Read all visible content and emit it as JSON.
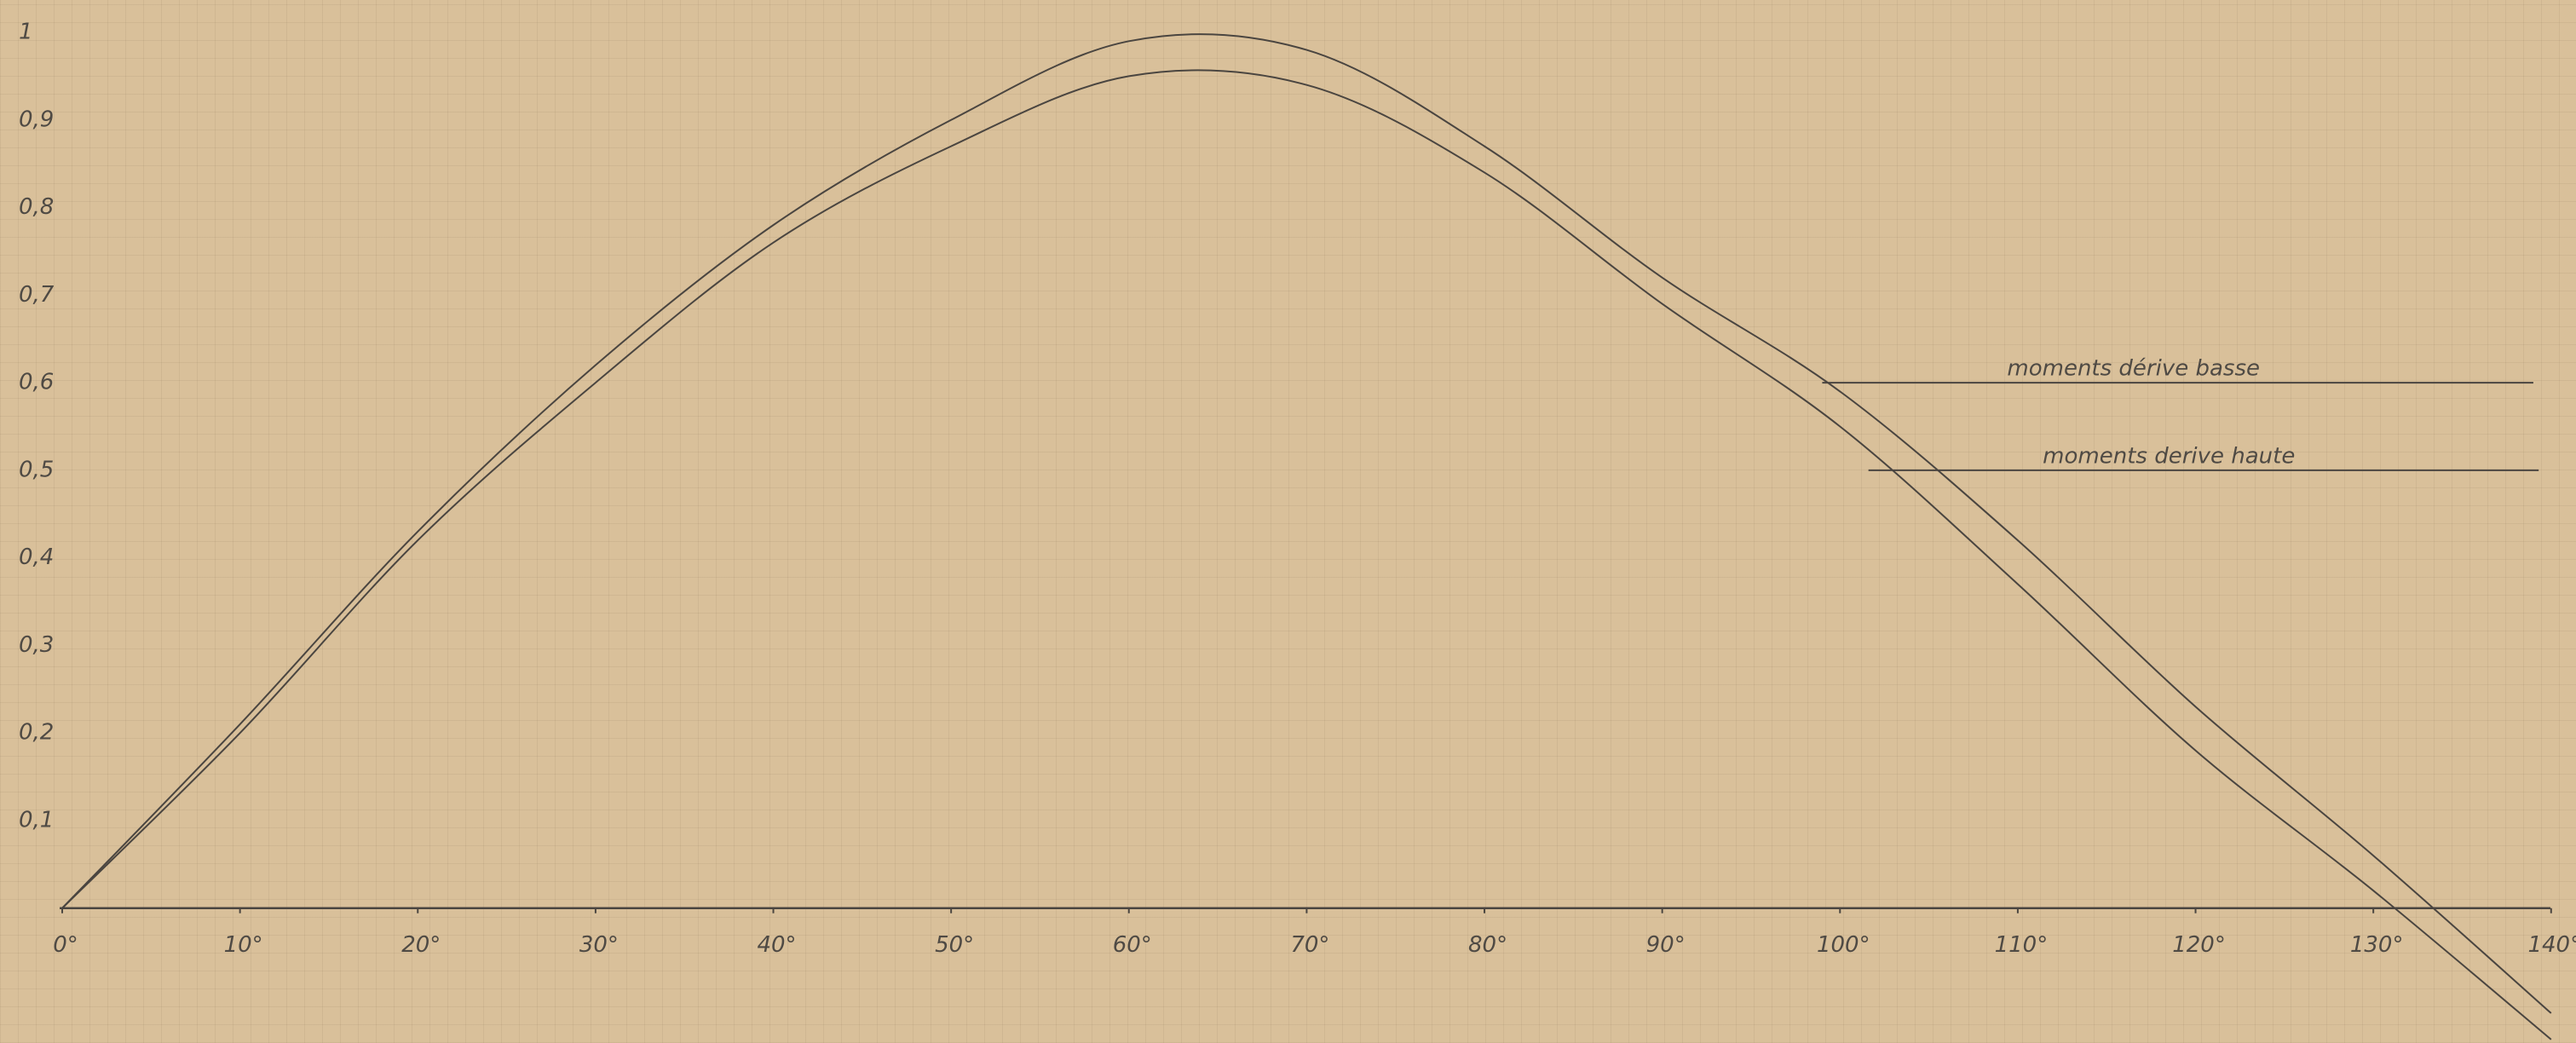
{
  "chart_data": {
    "type": "line",
    "x": [
      0,
      10,
      20,
      30,
      40,
      50,
      60,
      70,
      80,
      90,
      100,
      110,
      120,
      130,
      140
    ],
    "series": [
      {
        "name": "moments dérive basse",
        "color": "#4a4540",
        "values": [
          0,
          0.21,
          0.43,
          0.62,
          0.78,
          0.9,
          0.99,
          0.98,
          0.87,
          0.72,
          0.59,
          0.42,
          0.23,
          0.06,
          -0.12
        ]
      },
      {
        "name": "moments derive haute",
        "color": "#4a4540",
        "values": [
          0,
          0.2,
          0.42,
          0.6,
          0.76,
          0.87,
          0.95,
          0.94,
          0.84,
          0.69,
          0.55,
          0.37,
          0.18,
          0.02,
          -0.15
        ]
      }
    ],
    "annotations": [
      {
        "text": "moments dérive basse",
        "y": 0.6,
        "x": [
          99,
          139
        ]
      },
      {
        "text": "moments derive haute",
        "y": 0.5,
        "x": [
          101.6,
          139.3
        ]
      }
    ],
    "xlim": [
      -3.5,
      141.4
    ],
    "ylim": [
      -0.154,
      1.037
    ],
    "xticks": [
      {
        "value": 0,
        "label": "0°"
      },
      {
        "value": 10,
        "label": "10°"
      },
      {
        "value": 20,
        "label": "20°"
      },
      {
        "value": 30,
        "label": "30°"
      },
      {
        "value": 40,
        "label": "40°"
      },
      {
        "value": 50,
        "label": "50°"
      },
      {
        "value": 60,
        "label": "60°"
      },
      {
        "value": 70,
        "label": "70°"
      },
      {
        "value": 80,
        "label": "80°"
      },
      {
        "value": 90,
        "label": "90°"
      },
      {
        "value": 100,
        "label": "100°"
      },
      {
        "value": 110,
        "label": "110°"
      },
      {
        "value": 120,
        "label": "120°"
      },
      {
        "value": 130,
        "label": "130°"
      },
      {
        "value": 140,
        "label": "140°"
      }
    ],
    "yticks": [
      {
        "value": 0.1,
        "label": "0,1"
      },
      {
        "value": 0.2,
        "label": "0,2"
      },
      {
        "value": 0.3,
        "label": "0,3"
      },
      {
        "value": 0.4,
        "label": "0,4"
      },
      {
        "value": 0.5,
        "label": "0,5"
      },
      {
        "value": 0.6,
        "label": "0,6"
      },
      {
        "value": 0.7,
        "label": "0,7"
      },
      {
        "value": 0.8,
        "label": "0,8"
      },
      {
        "value": 0.9,
        "label": "0,9"
      },
      1
    ],
    "grid": false
  }
}
